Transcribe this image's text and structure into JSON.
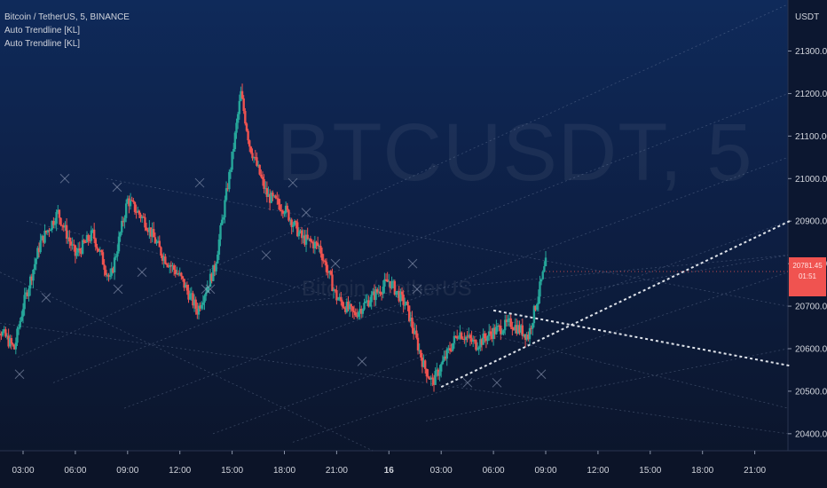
{
  "legend": {
    "symbol_line": "Bitcoin / TetherUS, 5, BINANCE",
    "indicator_1": "Auto Trendline [KL]",
    "indicator_2": "Auto Trendline [KL]"
  },
  "watermark": {
    "main": "BTCUSDT, 5",
    "sub": "Bitcoin / TetherUS"
  },
  "currency": "USDT",
  "price_badge": {
    "line1": "20781.45",
    "line2": "01:51"
  },
  "colors": {
    "up": "#26a69a",
    "down": "#ef5350",
    "trendline": "#dfe3ea",
    "grid": "#5a6a8a"
  },
  "chart_data": {
    "type": "candlestick",
    "title": "Bitcoin / TetherUS, 5, BINANCE",
    "x_ticks": [
      "03:00",
      "06:00",
      "09:00",
      "12:00",
      "15:00",
      "18:00",
      "21:00",
      "16",
      "03:00",
      "06:00",
      "09:00",
      "12:00",
      "15:00",
      "18:00",
      "21:00"
    ],
    "y_ticks": [
      21300.0,
      21200.0,
      21100.0,
      21000.0,
      20900.0,
      20800.0,
      20700.0,
      20600.0,
      20500.0,
      20400.0
    ],
    "ylim": [
      20360,
      21420
    ],
    "bar_interval_minutes": 5,
    "keypoints": [
      {
        "t": "01:00",
        "price": 20680
      },
      {
        "t": "02:30",
        "price": 20600
      },
      {
        "t": "03:00",
        "price": 20700
      },
      {
        "t": "04:00",
        "price": 20850
      },
      {
        "t": "05:00",
        "price": 20920
      },
      {
        "t": "06:00",
        "price": 20820
      },
      {
        "t": "07:00",
        "price": 20870
      },
      {
        "t": "08:00",
        "price": 20760
      },
      {
        "t": "09:00",
        "price": 20950
      },
      {
        "t": "10:00",
        "price": 20900
      },
      {
        "t": "11:00",
        "price": 20820
      },
      {
        "t": "12:00",
        "price": 20770
      },
      {
        "t": "13:00",
        "price": 20690
      },
      {
        "t": "14:00",
        "price": 20790
      },
      {
        "t": "15:00",
        "price": 21050
      },
      {
        "t": "15:30",
        "price": 21200
      },
      {
        "t": "16:00",
        "price": 21080
      },
      {
        "t": "17:00",
        "price": 20960
      },
      {
        "t": "18:00",
        "price": 20930
      },
      {
        "t": "19:00",
        "price": 20860
      },
      {
        "t": "20:00",
        "price": 20840
      },
      {
        "t": "21:00",
        "price": 20720
      },
      {
        "t": "22:00",
        "price": 20680
      },
      {
        "t": "23:00",
        "price": 20720
      },
      {
        "t": "00:00",
        "price": 20760
      },
      {
        "t": "01:00",
        "price": 20700
      },
      {
        "t": "02:00",
        "price": 20560
      },
      {
        "t": "02:30",
        "price": 20520
      },
      {
        "t": "03:30",
        "price": 20600
      },
      {
        "t": "04:00",
        "price": 20640
      },
      {
        "t": "05:00",
        "price": 20610
      },
      {
        "t": "06:00",
        "price": 20640
      },
      {
        "t": "07:00",
        "price": 20660
      },
      {
        "t": "08:00",
        "price": 20630
      },
      {
        "t": "09:00",
        "price": 20800
      }
    ],
    "last_price": 20781.45,
    "trendlines": [
      {
        "from": {
          "t": "03:00 (16)",
          "price": 20510
        },
        "to": {
          "t": "23:00 (16)",
          "price": 20900
        },
        "style": "dotted"
      },
      {
        "from": {
          "t": "06:00 (16)",
          "price": 20690
        },
        "to": {
          "t": "23:00 (16)",
          "price": 20560
        },
        "style": "dotted"
      }
    ]
  }
}
